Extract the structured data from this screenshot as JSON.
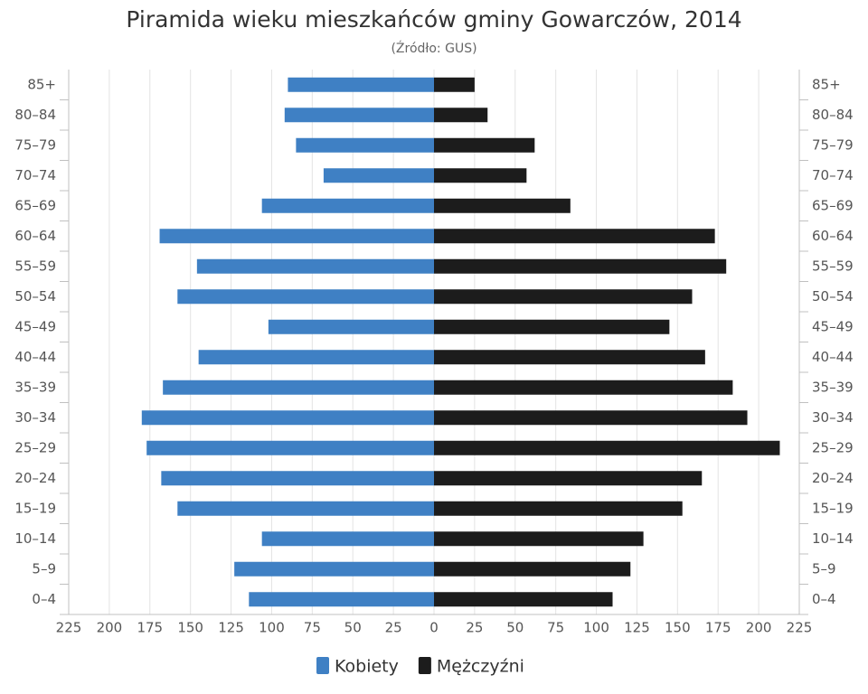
{
  "chart_data": {
    "type": "pyramid",
    "title": "Piramida wieku mieszkańców gminy Gowarczów, 2014",
    "subtitle": "(Źródło: GUS)",
    "categories": [
      "0–4",
      "5–9",
      "10–14",
      "15–19",
      "20–24",
      "25–29",
      "30–34",
      "35–39",
      "40–44",
      "45–49",
      "50–54",
      "55–59",
      "60–64",
      "65–69",
      "70–74",
      "75–79",
      "80–84",
      "85+"
    ],
    "series": [
      {
        "name": "Kobiety",
        "color": "#3f80c4",
        "values": [
          -114,
          -123,
          -106,
          -158,
          -168,
          -177,
          -180,
          -167,
          -145,
          -102,
          -158,
          -146,
          -169,
          -106,
          -68,
          -85,
          -92,
          -90
        ]
      },
      {
        "name": "Mężczyźni",
        "color": "#1c1c1c",
        "values": [
          110,
          121,
          129,
          153,
          165,
          213,
          193,
          184,
          167,
          145,
          159,
          180,
          173,
          84,
          57,
          62,
          33,
          25
        ]
      }
    ],
    "xlim": [
      -225,
      225
    ],
    "xticks": [
      {
        "value": -225,
        "label": "225"
      },
      {
        "value": -200,
        "label": "200"
      },
      {
        "value": -175,
        "label": "175"
      },
      {
        "value": -150,
        "label": "150"
      },
      {
        "value": -125,
        "label": "125"
      },
      {
        "value": -100,
        "label": "100"
      },
      {
        "value": -75,
        "label": "75"
      },
      {
        "value": -50,
        "label": "50"
      },
      {
        "value": -25,
        "label": "25"
      },
      0,
      25,
      50,
      75,
      100,
      125,
      150,
      175,
      200,
      225
    ],
    "grid": true
  }
}
